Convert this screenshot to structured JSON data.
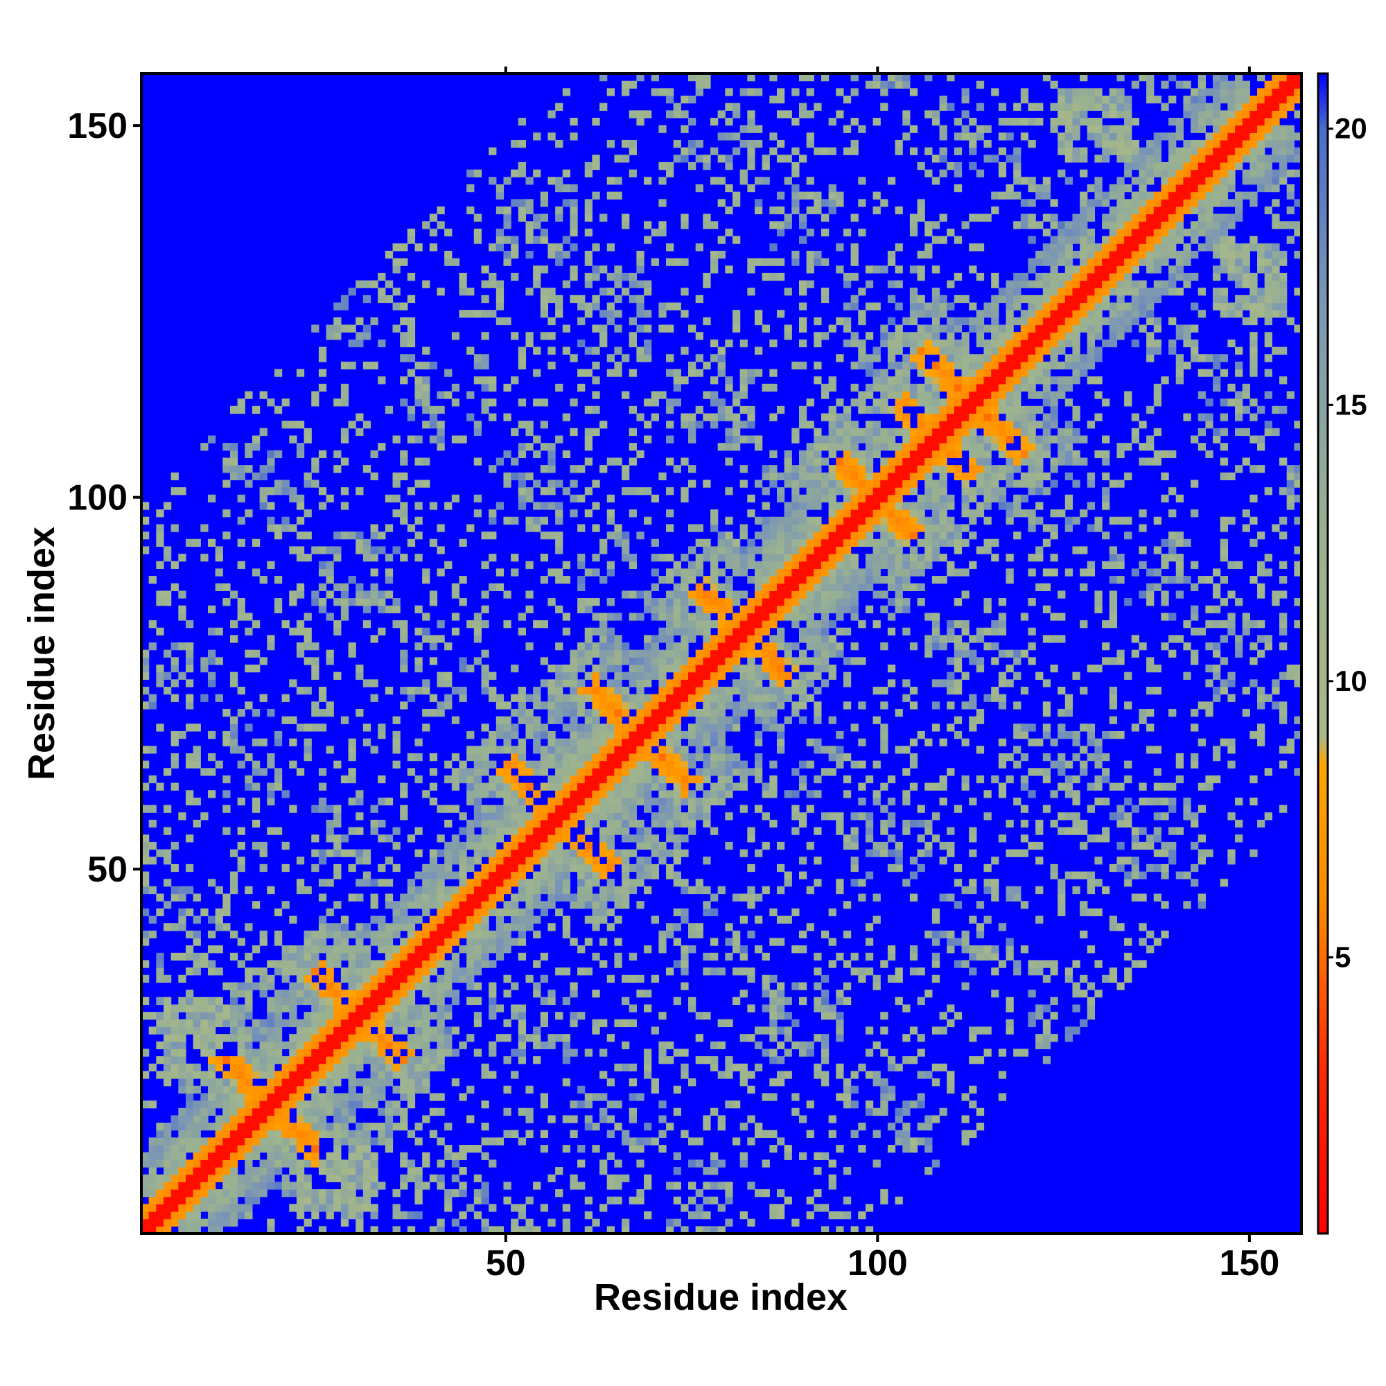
{
  "chart_data": {
    "type": "heatmap",
    "title": "",
    "xlabel": "Residue index",
    "ylabel": "Residue index",
    "xlim": [
      1,
      157
    ],
    "ylim": [
      1,
      157
    ],
    "x_ticks": [
      50,
      100,
      150
    ],
    "y_ticks": [
      50,
      100,
      150
    ],
    "colorbar": {
      "range": [
        0,
        21
      ],
      "ticks": [
        5,
        10,
        15,
        20
      ],
      "colors": [
        {
          "value": 0,
          "color": "#ff0000"
        },
        {
          "value": 3,
          "color": "#ff2a00"
        },
        {
          "value": 6,
          "color": "#ff8c00"
        },
        {
          "value": 8.5,
          "color": "#ffa500"
        },
        {
          "value": 9,
          "color": "#a8b88a"
        },
        {
          "value": 13,
          "color": "#98b092"
        },
        {
          "value": 17,
          "color": "#7a95b5"
        },
        {
          "value": 20,
          "color": "#4a6ccf"
        },
        {
          "value": 21,
          "color": "#0000ff"
        }
      ]
    },
    "description_of_structure": {
      "diagonal_band_width_residues": 3,
      "antidiagonal_contacts": [
        {
          "center": [
            18,
            18
          ],
          "length": 14
        },
        {
          "center": [
            30,
            30
          ],
          "length": 12
        },
        {
          "center": [
            57,
            57
          ],
          "length": 14
        },
        {
          "center": [
            68,
            68
          ],
          "length": 14
        },
        {
          "center": [
            82,
            82
          ],
          "length": 12
        },
        {
          "center": [
            100,
            100
          ],
          "length": 10
        },
        {
          "center": [
            108,
            108
          ],
          "length": 10
        },
        {
          "center": [
            113,
            113
          ],
          "length": 14
        }
      ],
      "parallel_contacts": [
        {
          "x_range": [
            3,
            12
          ],
          "y_range": [
            22,
            32
          ]
        },
        {
          "x_range": [
            146,
            155
          ],
          "y_range": [
            125,
            134
          ]
        }
      ]
    }
  }
}
